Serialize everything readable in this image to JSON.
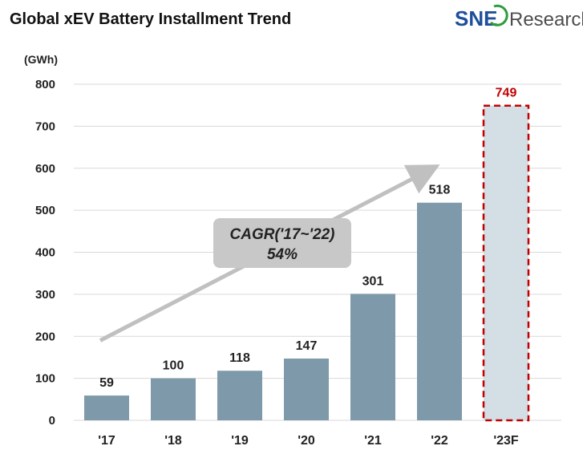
{
  "header": {
    "title": "Global xEV Battery Installment Trend",
    "logo": {
      "brand": "SNE",
      "suffix": "Research",
      "brand_color": "#1f4e9c",
      "accent_color": "#2a9d3a"
    }
  },
  "chart_data": {
    "type": "bar",
    "title": "Global xEV Battery Installment Trend",
    "ylabel": "(GWh)",
    "xlabel": "",
    "ylim": [
      0,
      800
    ],
    "yticks": [
      0,
      100,
      200,
      300,
      400,
      500,
      600,
      700,
      800
    ],
    "grid": true,
    "categories": [
      "'17",
      "'18",
      "'19",
      "'20",
      "'21",
      "'22",
      "'23F"
    ],
    "values": [
      59,
      100,
      118,
      147,
      301,
      518,
      749
    ],
    "forecast": [
      false,
      false,
      false,
      false,
      false,
      false,
      true
    ],
    "colors": {
      "bar": "#7e9aaa",
      "forecast_bar": "#d3dee5",
      "forecast_border": "#c00000",
      "forecast_label": "#c00000",
      "grid": "#d9d9d9",
      "arrow": "#c0c0c0",
      "callout": "#c8c8c8"
    },
    "annotations": [
      {
        "type": "trend-arrow",
        "text_line1": "CAGR('17~'22)",
        "text_line2": "54%"
      }
    ]
  }
}
